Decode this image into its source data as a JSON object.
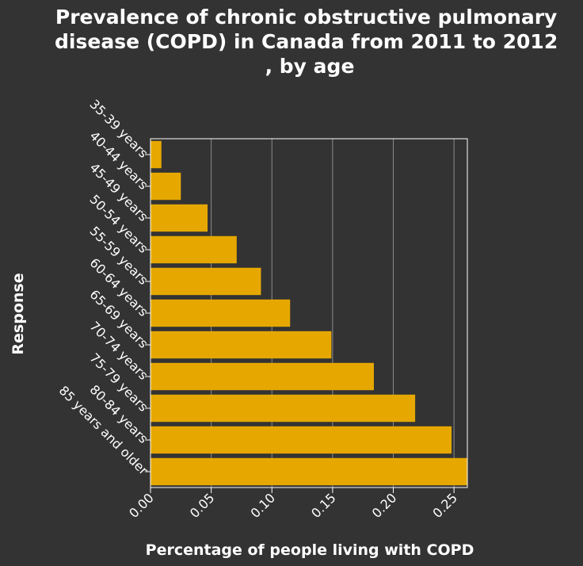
{
  "chart_data": {
    "type": "bar",
    "orientation": "horizontal",
    "title": "Prevalence of chronic obstructive pulmonary disease (COPD) in Canada from 2011 to 2012 , by age",
    "title_lines": [
      "Prevalence of chronic obstructive pulmonary",
      "disease (COPD) in Canada from 2011 to 2012",
      ", by age"
    ],
    "xlabel": "Percentage of people living with COPD",
    "ylabel": "Response",
    "categories": [
      "35-39 years",
      "40-44 years",
      "45-49 years",
      "50-54 years",
      "55-59 years",
      "60-64 years",
      "65-69 years",
      "70-74 years",
      "75-79 years",
      "80-84 years",
      "85 years and older"
    ],
    "values": [
      0.009,
      0.025,
      0.047,
      0.071,
      0.091,
      0.115,
      0.149,
      0.184,
      0.218,
      0.248,
      0.261
    ],
    "xlim": [
      0,
      0.261
    ],
    "xticks": [
      0.0,
      0.05,
      0.1,
      0.15,
      0.2,
      0.25
    ],
    "xtick_labels": [
      "0.00",
      "0.05",
      "0.10",
      "0.15",
      "0.20",
      "0.25"
    ],
    "grid": "vertical",
    "legend": "none",
    "colors": {
      "bar": "#e6a800",
      "background": "#333333",
      "text": "#ffffff",
      "grid": "#8c8c8c"
    }
  }
}
